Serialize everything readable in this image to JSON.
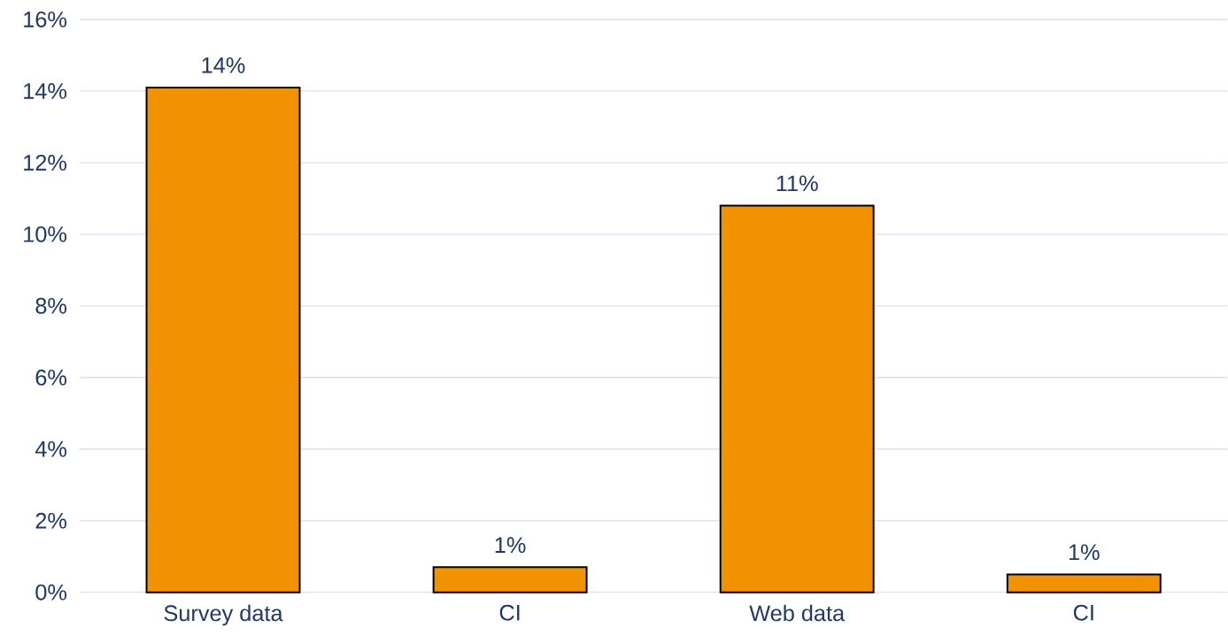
{
  "chart_data": {
    "type": "bar",
    "categories": [
      "Survey data",
      "CI",
      "Web data",
      "CI"
    ],
    "values": [
      14.1,
      0.7,
      10.8,
      0.5
    ],
    "value_labels": [
      "14%",
      "1%",
      "11%",
      "1%"
    ],
    "color": "#f39200",
    "ylim": [
      0,
      16
    ],
    "yticks": [
      {
        "value": 0,
        "label": "0%"
      },
      {
        "value": 2,
        "label": "2%"
      },
      {
        "value": 4,
        "label": "4%"
      },
      {
        "value": 6,
        "label": "6%"
      },
      {
        "value": 8,
        "label": "8%"
      },
      {
        "value": 10,
        "label": "10%"
      },
      {
        "value": 12,
        "label": "12%"
      },
      {
        "value": 14,
        "label": "14%"
      },
      {
        "value": 16,
        "label": "16%"
      }
    ],
    "grid": "y"
  }
}
